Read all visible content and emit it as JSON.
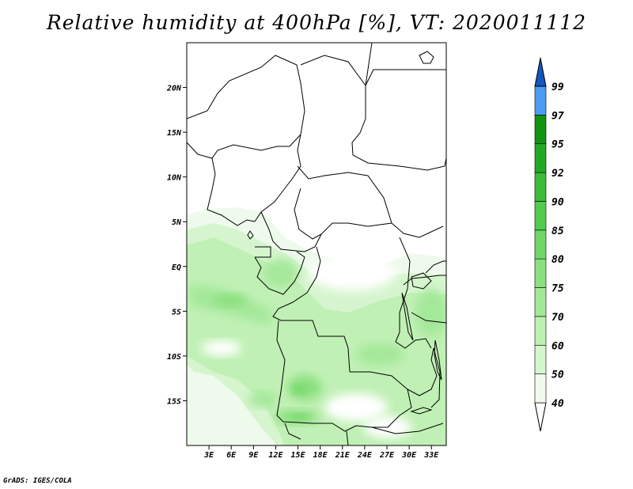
{
  "title": "Relative humidity at 400hPa [%], VT: 2020011112",
  "footer": "GrADS: IGES/COLA",
  "map": {
    "lon_range": [
      0,
      35
    ],
    "lat_range": [
      -20,
      25
    ],
    "lon_ticks": [
      {
        "value": 3,
        "label": "3E"
      },
      {
        "value": 6,
        "label": "6E"
      },
      {
        "value": 9,
        "label": "9E"
      },
      {
        "value": 12,
        "label": "12E"
      },
      {
        "value": 15,
        "label": "15E"
      },
      {
        "value": 18,
        "label": "18E"
      },
      {
        "value": 21,
        "label": "21E"
      },
      {
        "value": 24,
        "label": "24E"
      },
      {
        "value": 27,
        "label": "27E"
      },
      {
        "value": 30,
        "label": "30E"
      },
      {
        "value": 33,
        "label": "33E"
      }
    ],
    "lat_ticks": [
      {
        "value": 20,
        "label": "20N"
      },
      {
        "value": 15,
        "label": "15N"
      },
      {
        "value": 10,
        "label": "10N"
      },
      {
        "value": 5,
        "label": "5N"
      },
      {
        "value": 0,
        "label": "EQ"
      },
      {
        "value": -5,
        "label": "5S"
      },
      {
        "value": -10,
        "label": "10S"
      },
      {
        "value": -15,
        "label": "15S"
      }
    ]
  },
  "colorbar": {
    "levels": [
      "40",
      "50",
      "60",
      "70",
      "75",
      "80",
      "85",
      "90",
      "92",
      "95",
      "97",
      "99"
    ],
    "colors": [
      "#f0fbee",
      "#d4f5cd",
      "#bff0b3",
      "#a3e899",
      "#8ae07e",
      "#6fd765",
      "#52cc4e",
      "#3abb3a",
      "#23a826",
      "#119411",
      "#4a9cf0",
      "#2478dc",
      "#1456be"
    ]
  }
}
